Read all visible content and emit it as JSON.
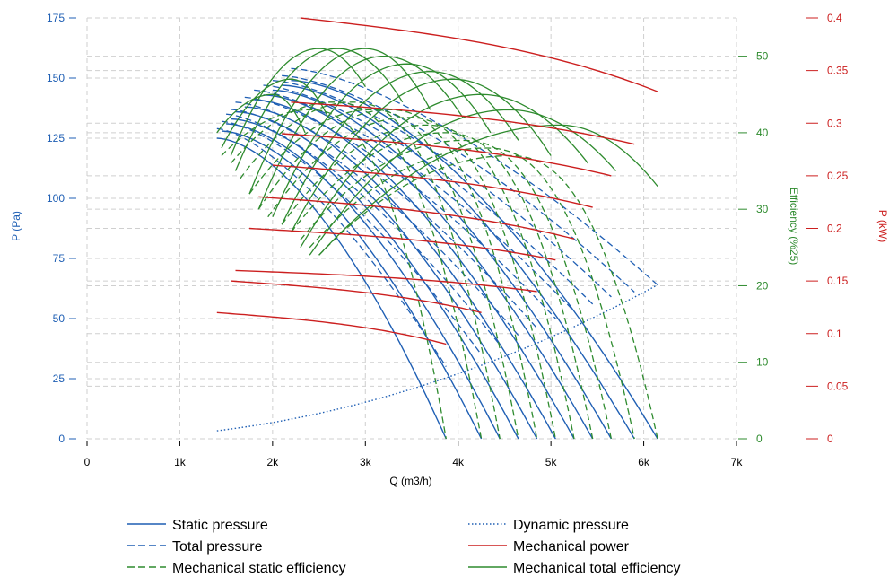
{
  "chart_data": {
    "type": "line",
    "x_axis": {
      "label": "Q (m3/h)",
      "range": [
        0,
        7000
      ],
      "ticks": [
        0,
        1000,
        2000,
        3000,
        4000,
        5000,
        6000,
        7000
      ],
      "tick_labels": [
        "0",
        "1k",
        "2k",
        "3k",
        "4k",
        "5k",
        "6k",
        "7k"
      ]
    },
    "y_axis_left": {
      "label": "P (Pa)",
      "range": [
        0,
        175
      ],
      "ticks": [
        0,
        25,
        50,
        75,
        100,
        125,
        150,
        175
      ],
      "tick_labels": [
        "0",
        "25",
        "50",
        "75",
        "100",
        "125",
        "150",
        "175"
      ],
      "color": "#1f5fb4"
    },
    "y_axis_eff": {
      "label": "Efficiency (%25)",
      "range": [
        0,
        55
      ],
      "ticks": [
        0,
        10,
        20,
        30,
        40,
        50
      ],
      "tick_labels": [
        "0",
        "10",
        "20",
        "30",
        "40",
        "50"
      ],
      "color": "#2e8b2e"
    },
    "y_axis_power": {
      "label": "P (kW)",
      "range": [
        0,
        0.4
      ],
      "ticks": [
        0,
        0.05,
        0.1,
        0.15,
        0.2,
        0.25,
        0.3,
        0.35,
        0.4
      ],
      "tick_labels": [
        "0",
        "0.05",
        "0.1",
        "0.15",
        "0.2",
        "0.25",
        "0.3",
        "0.35",
        "0.4"
      ],
      "color": "#cc1f1f"
    },
    "grid": true,
    "legend_position": "bottom",
    "colors": {
      "pressure": "#1f5fb4",
      "efficiency": "#2e8b2e",
      "power": "#cc1f1f"
    },
    "legend": [
      {
        "label": "Static pressure",
        "style": "solid",
        "color": "#1f5fb4"
      },
      {
        "label": "Dynamic pressure",
        "style": "dotted",
        "color": "#1f5fb4"
      },
      {
        "label": "Total pressure",
        "style": "dashed",
        "color": "#1f5fb4"
      },
      {
        "label": "Mechanical power",
        "style": "solid",
        "color": "#cc1f1f"
      },
      {
        "label": "Mechanical static efficiency",
        "style": "dashed",
        "color": "#2e8b2e"
      },
      {
        "label": "Mechanical total efficiency",
        "style": "solid",
        "color": "#2e8b2e"
      }
    ],
    "static_pressure_curves": [
      {
        "q_min": 1400,
        "q_max": 3870,
        "p_start": 125
      },
      {
        "q_min": 1450,
        "q_max": 4250,
        "p_start": 128
      },
      {
        "q_min": 1500,
        "q_max": 4450,
        "p_start": 131
      },
      {
        "q_min": 1550,
        "q_max": 4650,
        "p_start": 133
      },
      {
        "q_min": 1600,
        "q_max": 4850,
        "p_start": 136
      },
      {
        "q_min": 1700,
        "q_max": 5050,
        "p_start": 138
      },
      {
        "q_min": 1800,
        "q_max": 5250,
        "p_start": 141
      },
      {
        "q_min": 1900,
        "q_max": 5450,
        "p_start": 143
      },
      {
        "q_min": 2000,
        "q_max": 5650,
        "p_start": 145
      },
      {
        "q_min": 2100,
        "q_max": 5900,
        "p_start": 147
      },
      {
        "q_min": 2200,
        "q_max": 6150,
        "p_start": 149
      }
    ],
    "total_pressure_curves": [
      {
        "q_min": 1400,
        "q_max": 3870,
        "p_start": 129,
        "p_end": 30
      },
      {
        "q_min": 1450,
        "q_max": 4250,
        "p_start": 132,
        "p_end": 35
      },
      {
        "q_min": 1500,
        "q_max": 4450,
        "p_start": 135,
        "p_end": 39
      },
      {
        "q_min": 1550,
        "q_max": 4650,
        "p_start": 137,
        "p_end": 43
      },
      {
        "q_min": 1600,
        "q_max": 4850,
        "p_start": 140,
        "p_end": 46
      },
      {
        "q_min": 1700,
        "q_max": 5050,
        "p_start": 142,
        "p_end": 50
      },
      {
        "q_min": 1800,
        "q_max": 5250,
        "p_start": 145,
        "p_end": 53
      },
      {
        "q_min": 1900,
        "q_max": 5450,
        "p_start": 147,
        "p_end": 56
      },
      {
        "q_min": 2000,
        "q_max": 5650,
        "p_start": 149,
        "p_end": 59
      },
      {
        "q_min": 2100,
        "q_max": 5900,
        "p_start": 151,
        "p_end": 61
      },
      {
        "q_min": 2200,
        "q_max": 6150,
        "p_start": 154,
        "p_end": 64
      }
    ],
    "dynamic_pressure": {
      "q_min": 1400,
      "q_max": 6150,
      "p_at_q_max": 64
    },
    "mechanical_power_curves": [
      {
        "q_min": 1400,
        "q_max": 3870,
        "p_start": 0.12,
        "p_end": 0.09
      },
      {
        "q_min": 1550,
        "q_max": 4250,
        "p_start": 0.15,
        "p_end": 0.12
      },
      {
        "q_min": 1600,
        "q_max": 4850,
        "p_start": 0.16,
        "p_end": 0.14
      },
      {
        "q_min": 1750,
        "q_max": 5050,
        "p_start": 0.2,
        "p_end": 0.17
      },
      {
        "q_min": 1850,
        "q_max": 5250,
        "p_start": 0.23,
        "p_end": 0.19
      },
      {
        "q_min": 2000,
        "q_max": 5450,
        "p_start": 0.26,
        "p_end": 0.22
      },
      {
        "q_min": 2100,
        "q_max": 5650,
        "p_start": 0.29,
        "p_end": 0.25
      },
      {
        "q_min": 2200,
        "q_max": 5900,
        "p_start": 0.32,
        "p_end": 0.28
      },
      {
        "q_min": 2300,
        "q_max": 6150,
        "p_start": 0.4,
        "p_end": 0.33
      }
    ],
    "total_efficiency_curves": [
      {
        "q_min": 1400,
        "q_max": 2350,
        "e_start": 40,
        "q_peak": 2000,
        "e_peak": 45,
        "e_end": 40
      },
      {
        "q_min": 1450,
        "q_max": 2600,
        "e_start": 38,
        "q_peak": 2200,
        "e_peak": 47,
        "e_end": 42
      },
      {
        "q_min": 1550,
        "q_max": 3000,
        "e_start": 37,
        "q_peak": 2500,
        "e_peak": 51,
        "e_end": 46
      },
      {
        "q_min": 1600,
        "q_max": 3400,
        "e_start": 35,
        "q_peak": 2700,
        "e_peak": 51,
        "e_end": 44
      },
      {
        "q_min": 1750,
        "q_max": 3700,
        "e_start": 32,
        "q_peak": 3000,
        "e_peak": 51,
        "e_end": 43
      },
      {
        "q_min": 1850,
        "q_max": 4050,
        "e_start": 30,
        "q_peak": 3200,
        "e_peak": 50,
        "e_end": 42
      },
      {
        "q_min": 2000,
        "q_max": 4350,
        "e_start": 29,
        "q_peak": 3450,
        "e_peak": 49,
        "e_end": 40
      },
      {
        "q_min": 2100,
        "q_max": 4650,
        "e_start": 28,
        "q_peak": 3700,
        "e_peak": 48,
        "e_end": 39
      },
      {
        "q_min": 2200,
        "q_max": 5000,
        "e_start": 27,
        "q_peak": 3950,
        "e_peak": 47,
        "e_end": 37
      },
      {
        "q_min": 2300,
        "q_max": 5400,
        "e_start": 25,
        "q_peak": 4250,
        "e_peak": 45,
        "e_end": 36
      },
      {
        "q_min": 2400,
        "q_max": 5700,
        "e_start": 24,
        "q_peak": 4550,
        "e_peak": 43,
        "e_end": 35
      },
      {
        "q_min": 2500,
        "q_max": 6150,
        "e_start": 24,
        "q_peak": 5100,
        "e_peak": 41,
        "e_end": 33
      }
    ],
    "static_efficiency_curves": [
      {
        "q_min": 1450,
        "q_max": 3870,
        "e_start": 37,
        "q_peak": 2400,
        "e_peak": 43
      },
      {
        "q_min": 1550,
        "q_max": 4250,
        "e_start": 36,
        "q_peak": 2650,
        "e_peak": 44
      },
      {
        "q_min": 1650,
        "q_max": 4450,
        "e_start": 34,
        "q_peak": 2850,
        "e_peak": 44
      },
      {
        "q_min": 1750,
        "q_max": 4650,
        "e_start": 32,
        "q_peak": 3050,
        "e_peak": 43
      },
      {
        "q_min": 1850,
        "q_max": 4850,
        "e_start": 30,
        "q_peak": 3250,
        "e_peak": 43
      },
      {
        "q_min": 1950,
        "q_max": 5050,
        "e_start": 29,
        "q_peak": 3450,
        "e_peak": 42
      },
      {
        "q_min": 2100,
        "q_max": 5250,
        "e_start": 28,
        "q_peak": 3650,
        "e_peak": 41
      },
      {
        "q_min": 2200,
        "q_max": 5450,
        "e_start": 27,
        "q_peak": 3850,
        "e_peak": 40
      },
      {
        "q_min": 2300,
        "q_max": 5650,
        "e_start": 26,
        "q_peak": 4050,
        "e_peak": 39
      },
      {
        "q_min": 2400,
        "q_max": 5900,
        "e_start": 25,
        "q_peak": 4300,
        "e_peak": 38
      },
      {
        "q_min": 2500,
        "q_max": 6150,
        "e_start": 24,
        "q_peak": 4550,
        "e_peak": 37
      }
    ]
  }
}
